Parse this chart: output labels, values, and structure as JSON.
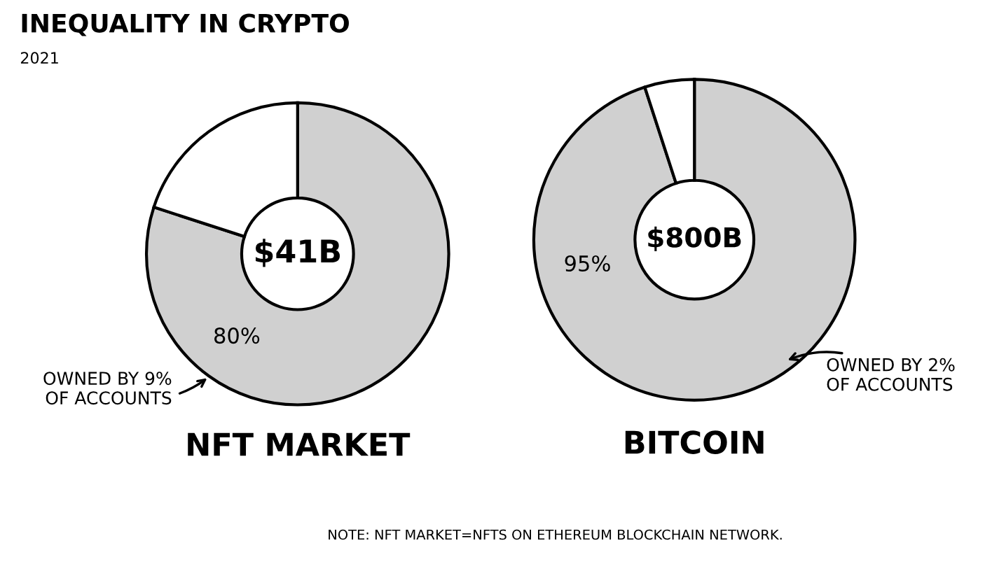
{
  "chart_data": [
    {
      "type": "donut",
      "title": "NFT MARKET",
      "categories": [
        null,
        null
      ],
      "values": [
        80,
        20
      ],
      "colors": [
        "#d0d0d0",
        "#ffffff"
      ],
      "value_labels": [
        "80%",
        null
      ],
      "annotations": [
        "INEQUALITY IN CRYPTO",
        "2021",
        "$41B",
        "OWNED BY 9%\nOF ACCOUNTS"
      ]
    },
    {
      "type": "donut",
      "title": "BITCOIN",
      "categories": [
        null,
        null
      ],
      "values": [
        95,
        5
      ],
      "colors": [
        "#d0d0d0",
        "#ffffff"
      ],
      "value_labels": [
        "95%",
        null
      ],
      "annotations": [
        "$800B",
        "OWNED BY 2%\nOF ACCOUNTS",
        "NOTE: NFT MARKET=NFTS ON ETHEREUM BLOCKCHAIN NETWORK."
      ]
    }
  ]
}
